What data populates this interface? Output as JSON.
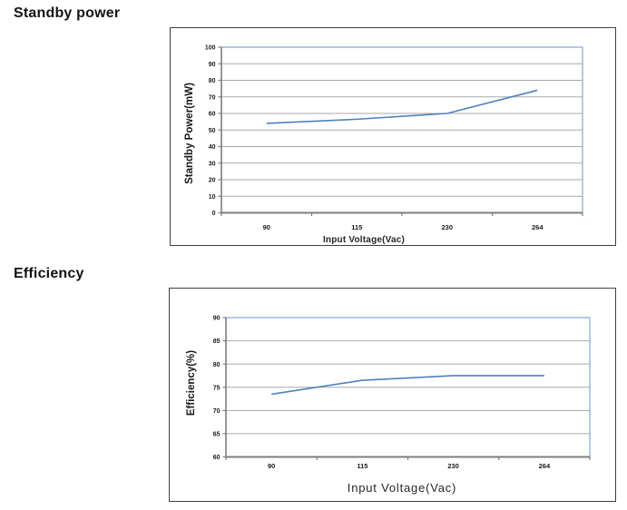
{
  "chart_data": [
    {
      "type": "line",
      "heading": "Standby power",
      "categories": [
        "90",
        "115",
        "230",
        "264"
      ],
      "values": [
        54,
        56.5,
        60,
        74
      ],
      "xlabel": "Input Voltage(Vac)",
      "ylabel": "Standby Power(mW)",
      "ylim": [
        0,
        100
      ],
      "yticks": [
        0,
        10,
        20,
        30,
        40,
        50,
        60,
        70,
        80,
        90,
        100
      ],
      "grid": true,
      "legend": "none",
      "colors": {
        "series": "#4f81bd",
        "plot_border": "#95b3d7",
        "axis": "#7f7f7f",
        "grid": "#a9a9a9",
        "text": "#1a1a1a"
      }
    },
    {
      "type": "line",
      "heading": "Efficiency",
      "categories": [
        "90",
        "115",
        "230",
        "264"
      ],
      "values": [
        73.5,
        76.5,
        77.5,
        77.5
      ],
      "xlabel": "Input Voltage(Vac)",
      "ylabel": "Efficiency(%)",
      "ylim": [
        60,
        90
      ],
      "yticks": [
        60,
        65,
        70,
        75,
        80,
        85,
        90
      ],
      "grid": true,
      "legend": "none",
      "colors": {
        "series": "#4f81bd",
        "plot_border": "#95b3d7",
        "axis": "#7f7f7f",
        "grid": "#a9a9a9",
        "text": "#1a1a1a"
      }
    }
  ]
}
